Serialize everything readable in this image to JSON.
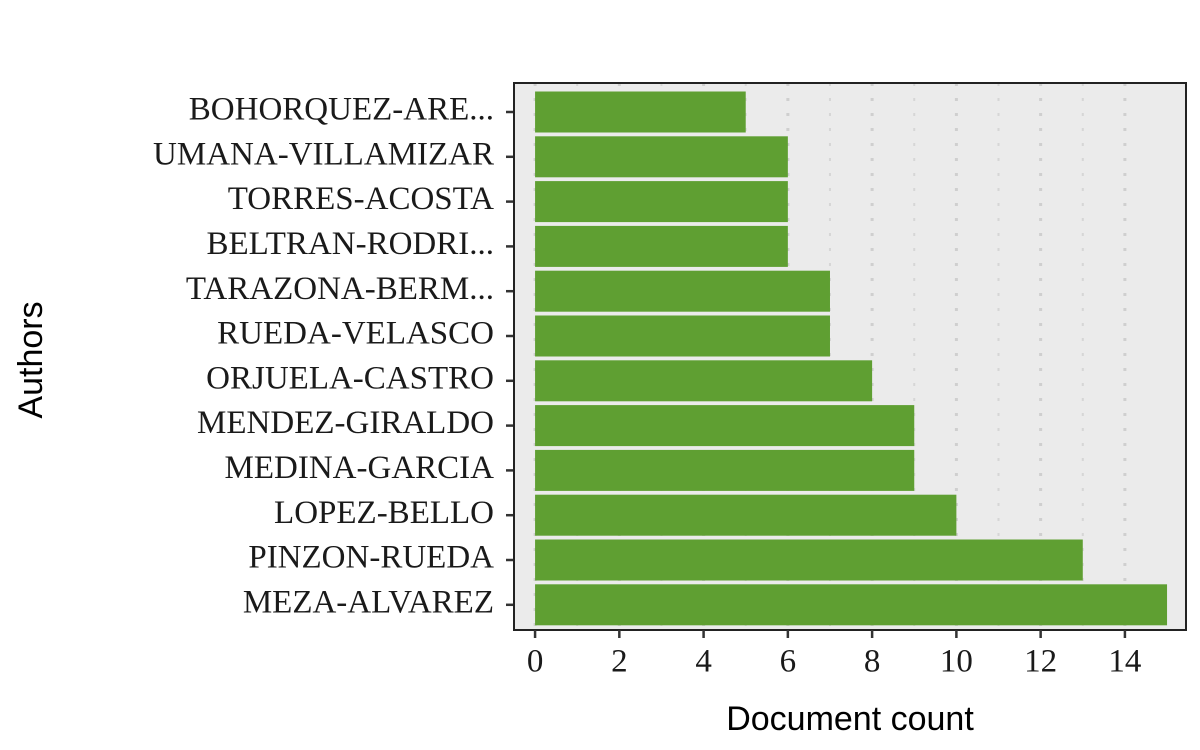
{
  "chart_data": {
    "type": "bar",
    "orientation": "horizontal",
    "x_label": "Document count",
    "y_label": "Authors",
    "categories": [
      "BOHORQUEZ-ARE...",
      "UMANA-VILLAMIZAR",
      "TORRES-ACOSTA",
      "BELTRAN-RODRI...",
      "TARAZONA-BERM...",
      "RUEDA-VELASCO",
      "ORJUELA-CASTRO",
      "MENDEZ-GIRALDO",
      "MEDINA-GARCIA",
      "LOPEZ-BELLO",
      "PINZON-RUEDA",
      "MEZA-ALVAREZ"
    ],
    "values": [
      5,
      6,
      6,
      6,
      7,
      7,
      8,
      9,
      9,
      10,
      13,
      15
    ],
    "color": "#5f9f32",
    "xlim": [
      -0.5,
      15.45
    ],
    "xticks": [
      0,
      2,
      4,
      6,
      8,
      10,
      12,
      14
    ],
    "grid": true
  }
}
